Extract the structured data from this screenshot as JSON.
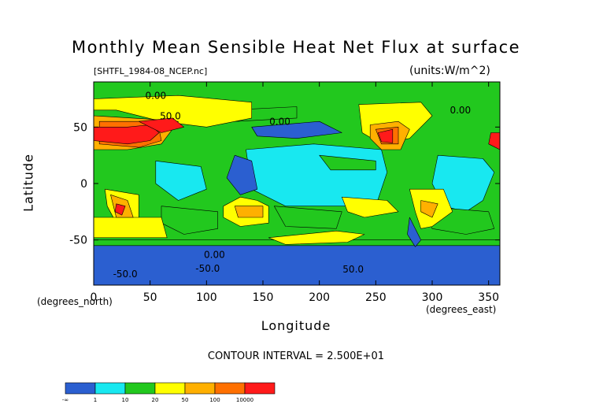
{
  "figure": {
    "title": "Monthly Mean Sensible Heat Net Flux at surface",
    "file_label": "[SHTFL_1984-08_NCEP.nc]",
    "units_label": "(units:W/m^2)",
    "contour_interval_text": "CONTOUR INTERVAL = 2.500E+01"
  },
  "chart_data": {
    "type": "heatmap",
    "title": "Monthly Mean Sensible Heat Net Flux at surface",
    "xlabel": "Longitude",
    "ylabel": "Latitude",
    "x_unit_label": "(degrees_east)",
    "y_unit_label": "(degrees_north)",
    "xlim": [
      0,
      360
    ],
    "ylim": [
      -90,
      90
    ],
    "x_ticks": [
      0,
      50,
      100,
      150,
      200,
      250,
      300,
      350
    ],
    "y_ticks": [
      -50,
      0,
      50
    ],
    "contour_labels": [
      {
        "text": "0.00",
        "lon": 165,
        "lat": 52
      },
      {
        "text": "0.00",
        "lon": 55,
        "lat": 75
      },
      {
        "text": "0.00",
        "lon": 325,
        "lat": 62
      },
      {
        "text": "50.0",
        "lon": 68,
        "lat": 57
      },
      {
        "text": "0.00",
        "lon": 107,
        "lat": -66
      },
      {
        "text": "-50.0",
        "lon": 28,
        "lat": -83
      },
      {
        "text": "-50.0",
        "lon": 101,
        "lat": -78
      },
      {
        "text": "50.0",
        "lon": 230,
        "lat": -79
      }
    ],
    "colorbar": {
      "tick_labels": [
        "-∞",
        "1",
        "10",
        "20",
        "50",
        "100",
        "10000"
      ],
      "colors": [
        "#2b5fd0",
        "#18e8f0",
        "#22c81e",
        "#ffff00",
        "#ffb000",
        "#ff7000",
        "#ff1a1a"
      ]
    },
    "region_colors": {
      "very_negative": "#2b5fd0",
      "low": "#18e8f0",
      "mid": "#22c81e",
      "positive": "#ffff00",
      "high": "#ffb000",
      "higher": "#ff7000",
      "highest": "#ff1a1a"
    },
    "regions": [
      {
        "level": "low",
        "points": [
          [
            135,
            30
          ],
          [
            195,
            35
          ],
          [
            255,
            30
          ],
          [
            260,
            10
          ],
          [
            250,
            -20
          ],
          [
            210,
            -20
          ],
          [
            170,
            -20
          ],
          [
            140,
            -5
          ]
        ]
      },
      {
        "level": "low",
        "points": [
          [
            305,
            25
          ],
          [
            345,
            22
          ],
          [
            355,
            10
          ],
          [
            345,
            -15
          ],
          [
            330,
            -25
          ],
          [
            310,
            -20
          ],
          [
            300,
            0
          ]
        ]
      },
      {
        "level": "low",
        "points": [
          [
            55,
            20
          ],
          [
            95,
            15
          ],
          [
            100,
            -5
          ],
          [
            75,
            -15
          ],
          [
            55,
            0
          ]
        ]
      },
      {
        "level": "mid",
        "points": [
          [
            290,
            -20
          ],
          [
            350,
            -25
          ],
          [
            355,
            -40
          ],
          [
            330,
            -45
          ],
          [
            300,
            -40
          ]
        ]
      },
      {
        "level": "mid",
        "points": [
          [
            60,
            -20
          ],
          [
            110,
            -25
          ],
          [
            110,
            -40
          ],
          [
            80,
            -45
          ],
          [
            60,
            -35
          ]
        ]
      },
      {
        "level": "mid",
        "points": [
          [
            160,
            -20
          ],
          [
            220,
            -25
          ],
          [
            215,
            -40
          ],
          [
            170,
            -38
          ]
        ]
      },
      {
        "level": "mid",
        "points": [
          [
            200,
            25
          ],
          [
            250,
            20
          ],
          [
            250,
            12
          ],
          [
            210,
            12
          ]
        ]
      },
      {
        "level": "mid",
        "points": [
          [
            0,
            -60
          ],
          [
            360,
            -60
          ],
          [
            360,
            -50
          ],
          [
            0,
            -50
          ]
        ]
      },
      {
        "level": "mid",
        "points": [
          [
            120,
            65
          ],
          [
            180,
            68
          ],
          [
            180,
            58
          ],
          [
            125,
            55
          ]
        ]
      },
      {
        "level": "very_negative",
        "points": [
          [
            140,
            50
          ],
          [
            200,
            55
          ],
          [
            220,
            45
          ],
          [
            180,
            40
          ],
          [
            145,
            42
          ]
        ]
      },
      {
        "level": "very_negative",
        "points": [
          [
            0,
            -55
          ],
          [
            360,
            -55
          ],
          [
            360,
            -90
          ],
          [
            0,
            -90
          ]
        ]
      },
      {
        "level": "very_negative",
        "points": [
          [
            125,
            25
          ],
          [
            140,
            20
          ],
          [
            145,
            -5
          ],
          [
            130,
            -10
          ],
          [
            118,
            5
          ]
        ]
      },
      {
        "level": "very_negative",
        "points": [
          [
            280,
            -30
          ],
          [
            290,
            -50
          ],
          [
            285,
            -56
          ],
          [
            278,
            -45
          ]
        ]
      },
      {
        "level": "positive",
        "points": [
          [
            0,
            75
          ],
          [
            75,
            78
          ],
          [
            140,
            72
          ],
          [
            140,
            58
          ],
          [
            100,
            50
          ],
          [
            60,
            55
          ],
          [
            20,
            65
          ],
          [
            0,
            65
          ]
        ]
      },
      {
        "level": "positive",
        "points": [
          [
            235,
            70
          ],
          [
            290,
            72
          ],
          [
            300,
            60
          ],
          [
            280,
            40
          ],
          [
            255,
            35
          ],
          [
            238,
            45
          ]
        ]
      },
      {
        "level": "positive",
        "points": [
          [
            145,
            -15
          ],
          [
            155,
            -20
          ],
          [
            155,
            -35
          ],
          [
            130,
            -38
          ],
          [
            115,
            -30
          ],
          [
            115,
            -20
          ],
          [
            130,
            -12
          ]
        ]
      },
      {
        "level": "positive",
        "points": [
          [
            10,
            -5
          ],
          [
            40,
            -10
          ],
          [
            40,
            -35
          ],
          [
            20,
            -35
          ],
          [
            12,
            -20
          ]
        ]
      },
      {
        "level": "positive",
        "points": [
          [
            280,
            -5
          ],
          [
            310,
            -5
          ],
          [
            318,
            -25
          ],
          [
            300,
            -38
          ],
          [
            290,
            -40
          ],
          [
            285,
            -25
          ]
        ]
      },
      {
        "level": "positive",
        "points": [
          [
            0,
            -30
          ],
          [
            60,
            -30
          ],
          [
            65,
            -48
          ],
          [
            0,
            -48
          ]
        ]
      },
      {
        "level": "positive",
        "points": [
          [
            155,
            -48
          ],
          [
            215,
            -42
          ],
          [
            240,
            -45
          ],
          [
            225,
            -52
          ],
          [
            170,
            -54
          ]
        ]
      },
      {
        "level": "positive",
        "points": [
          [
            220,
            -12
          ],
          [
            260,
            -15
          ],
          [
            270,
            -25
          ],
          [
            240,
            -30
          ],
          [
            225,
            -25
          ]
        ]
      },
      {
        "level": "high",
        "points": [
          [
            0,
            60
          ],
          [
            50,
            57
          ],
          [
            75,
            55
          ],
          [
            60,
            35
          ],
          [
            30,
            30
          ],
          [
            0,
            30
          ]
        ]
      },
      {
        "level": "high",
        "points": [
          [
            245,
            52
          ],
          [
            270,
            55
          ],
          [
            280,
            48
          ],
          [
            272,
            30
          ],
          [
            255,
            30
          ],
          [
            245,
            40
          ]
        ]
      },
      {
        "level": "high",
        "points": [
          [
            15,
            -10
          ],
          [
            30,
            -15
          ],
          [
            35,
            -30
          ],
          [
            20,
            -30
          ]
        ]
      },
      {
        "level": "high",
        "points": [
          [
            125,
            -20
          ],
          [
            150,
            -20
          ],
          [
            150,
            -30
          ],
          [
            128,
            -30
          ]
        ]
      },
      {
        "level": "high",
        "points": [
          [
            290,
            -15
          ],
          [
            305,
            -18
          ],
          [
            300,
            -30
          ],
          [
            290,
            -25
          ]
        ]
      },
      {
        "level": "higher",
        "points": [
          [
            5,
            55
          ],
          [
            45,
            55
          ],
          [
            58,
            48
          ],
          [
            60,
            38
          ],
          [
            40,
            32
          ],
          [
            5,
            35
          ]
        ]
      },
      {
        "level": "higher",
        "points": [
          [
            250,
            48
          ],
          [
            270,
            50
          ],
          [
            270,
            35
          ],
          [
            255,
            35
          ]
        ]
      },
      {
        "level": "highest",
        "points": [
          [
            0,
            50
          ],
          [
            30,
            50
          ],
          [
            50,
            52
          ],
          [
            58,
            45
          ],
          [
            50,
            38
          ],
          [
            30,
            35
          ],
          [
            0,
            38
          ]
        ]
      },
      {
        "level": "highest",
        "points": [
          [
            40,
            55
          ],
          [
            70,
            58
          ],
          [
            80,
            50
          ],
          [
            60,
            45
          ]
        ]
      },
      {
        "level": "highest",
        "points": [
          [
            252,
            45
          ],
          [
            265,
            48
          ],
          [
            265,
            36
          ],
          [
            255,
            37
          ]
        ]
      },
      {
        "level": "highest",
        "points": [
          [
            352,
            45
          ],
          [
            360,
            45
          ],
          [
            360,
            30
          ],
          [
            350,
            35
          ]
        ]
      },
      {
        "level": "highest",
        "points": [
          [
            20,
            -18
          ],
          [
            28,
            -20
          ],
          [
            25,
            -28
          ],
          [
            19,
            -25
          ]
        ]
      }
    ]
  }
}
